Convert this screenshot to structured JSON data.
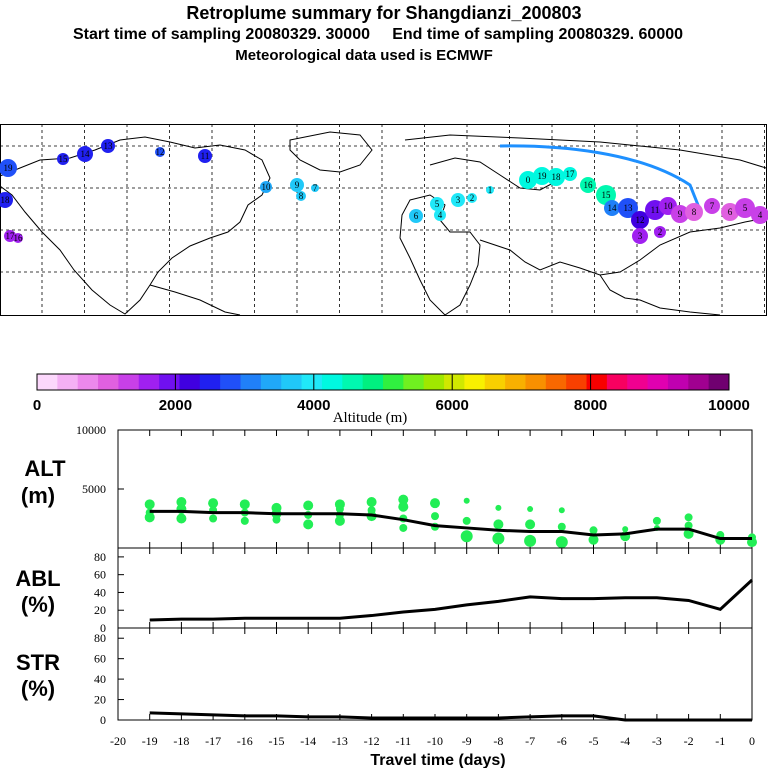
{
  "header": {
    "title": "Retroplume summary for Shangdianzi_200803",
    "subtitle": "Start time of sampling 20080329. 30000     End time of sampling 20080329. 60000",
    "met_line": "Meteorological data used is ECMWF"
  },
  "map": {
    "plume_labels": [
      "19",
      "18",
      "17",
      "16",
      "15",
      "14",
      "13",
      "12",
      "11",
      "10",
      "9",
      "8",
      "7",
      "6",
      "5",
      "4",
      "3",
      "2",
      "1",
      "0"
    ]
  },
  "colorbar": {
    "ticks": [
      "0",
      "2000",
      "4000",
      "6000",
      "8000",
      "10000"
    ],
    "label": "Altitude  (m)",
    "colors": [
      "#fcd8fc",
      "#f4b0f4",
      "#ec88ec",
      "#e060e0",
      "#c840e8",
      "#a020f0",
      "#7010f0",
      "#4000e0",
      "#2020f0",
      "#2050f8",
      "#2080f8",
      "#20a8f8",
      "#20c8f8",
      "#20e8f8",
      "#00f8e0",
      "#00f8b0",
      "#00f080",
      "#30f040",
      "#70f020",
      "#a0e800",
      "#d0e800",
      "#f8f000",
      "#f8d000",
      "#f8b000",
      "#f89000",
      "#f86800",
      "#f84000",
      "#f80000",
      "#f80060",
      "#f00090",
      "#e000b0",
      "#c000b0",
      "#a00090",
      "#700070"
    ]
  },
  "chart_data": [
    {
      "type": "line",
      "name": "alt",
      "ylabel_line1": "ALT",
      "ylabel_line2": "(m)",
      "ylim": [
        0,
        10000
      ],
      "ytick_labels": [
        "10000",
        "5000"
      ],
      "yticks": [
        10000,
        5000
      ],
      "x": [
        -19,
        -18,
        -17,
        -16,
        -15,
        -14,
        -13,
        -12,
        -11,
        -10,
        -9,
        -8,
        -7,
        -6,
        -5,
        -4,
        -3,
        -2,
        -1,
        0
      ],
      "median": [
        3100,
        3100,
        3000,
        3000,
        2900,
        2900,
        2900,
        2800,
        2400,
        1900,
        1700,
        1500,
        1400,
        1400,
        1100,
        1200,
        1600,
        1600,
        800,
        800
      ],
      "scatter_x": [
        -19,
        -19,
        -19,
        -18,
        -18,
        -18,
        -17,
        -17,
        -17,
        -16,
        -16,
        -16,
        -15,
        -15,
        -15,
        -14,
        -14,
        -14,
        -13,
        -13,
        -13,
        -13,
        -12,
        -12,
        -12,
        -11,
        -11,
        -11,
        -11,
        -10,
        -10,
        -10,
        -9,
        -9,
        -9,
        -8,
        -8,
        -8,
        -7,
        -7,
        -7,
        -6,
        -6,
        -6,
        -5,
        -5,
        -4,
        -4,
        -3,
        -3,
        -2,
        -2,
        -2,
        -1,
        -1,
        0,
        0
      ],
      "scatter_y": [
        3700,
        3000,
        2600,
        3900,
        3300,
        2500,
        3800,
        3200,
        2500,
        3700,
        3000,
        2300,
        3400,
        2900,
        2400,
        3600,
        2800,
        2000,
        3700,
        3300,
        2800,
        2300,
        3900,
        3200,
        2700,
        4100,
        3500,
        2500,
        1700,
        3800,
        2700,
        1800,
        4000,
        2300,
        1000,
        3400,
        2000,
        800,
        3300,
        2000,
        600,
        3200,
        1800,
        500,
        1500,
        700,
        1600,
        1000,
        1700,
        2300,
        2600,
        1900,
        1200,
        1100,
        700,
        900,
        500
      ],
      "scatter_size": [
        5,
        4,
        5,
        5,
        5,
        5,
        5,
        4,
        4,
        5,
        4,
        4,
        5,
        5,
        4,
        5,
        4,
        5,
        5,
        4,
        4,
        5,
        5,
        4,
        5,
        5,
        5,
        4,
        4,
        5,
        4,
        4,
        3,
        4,
        6,
        3,
        5,
        6,
        3,
        5,
        6,
        3,
        4,
        6,
        4,
        5,
        3,
        5,
        3,
        4,
        4,
        4,
        5,
        4,
        5,
        4,
        5
      ]
    },
    {
      "type": "line",
      "name": "abl",
      "ylabel_line1": "ABL",
      "ylabel_line2": "(%)",
      "ylim": [
        0,
        90
      ],
      "ytick_labels": [
        "80",
        "60",
        "40",
        "20",
        "0"
      ],
      "yticks": [
        80,
        60,
        40,
        20,
        0
      ],
      "x": [
        -19,
        -18,
        -17,
        -16,
        -15,
        -14,
        -13,
        -12,
        -11,
        -10,
        -9,
        -8,
        -7,
        -6,
        -5,
        -4,
        -3,
        -2,
        -1,
        0
      ],
      "values": [
        9,
        10,
        10,
        11,
        11,
        11,
        11,
        14,
        18,
        21,
        26,
        30,
        35,
        33,
        33,
        34,
        34,
        31,
        21,
        54
      ]
    },
    {
      "type": "line",
      "name": "str",
      "ylabel_line1": "STR",
      "ylabel_line2": "(%)",
      "ylim": [
        0,
        90
      ],
      "ytick_labels": [
        "80",
        "60",
        "40",
        "20",
        "0"
      ],
      "yticks": [
        80,
        60,
        40,
        20,
        0
      ],
      "x": [
        -19,
        -18,
        -17,
        -16,
        -15,
        -14,
        -13,
        -12,
        -11,
        -10,
        -9,
        -8,
        -7,
        -6,
        -5,
        -4,
        -3,
        -2,
        -1,
        0
      ],
      "values": [
        7,
        6,
        5,
        4,
        4,
        3,
        3,
        2,
        2,
        2,
        2,
        2,
        3,
        4,
        4,
        0,
        0,
        0,
        0,
        0
      ]
    }
  ],
  "xaxis": {
    "tick_labels": [
      "-20",
      "-19",
      "-18",
      "-17",
      "-16",
      "-15",
      "-14",
      "-13",
      "-12",
      "-11",
      "-10",
      "-9",
      "-8",
      "-7",
      "-6",
      "-5",
      "-4",
      "-3",
      "-2",
      "-1",
      "0"
    ],
    "ticks": [
      -20,
      -19,
      -18,
      -17,
      -16,
      -15,
      -14,
      -13,
      -12,
      -11,
      -10,
      -9,
      -8,
      -7,
      -6,
      -5,
      -4,
      -3,
      -2,
      -1,
      0
    ],
    "label": "Travel time (days)",
    "xlim": [
      -20,
      0
    ]
  }
}
